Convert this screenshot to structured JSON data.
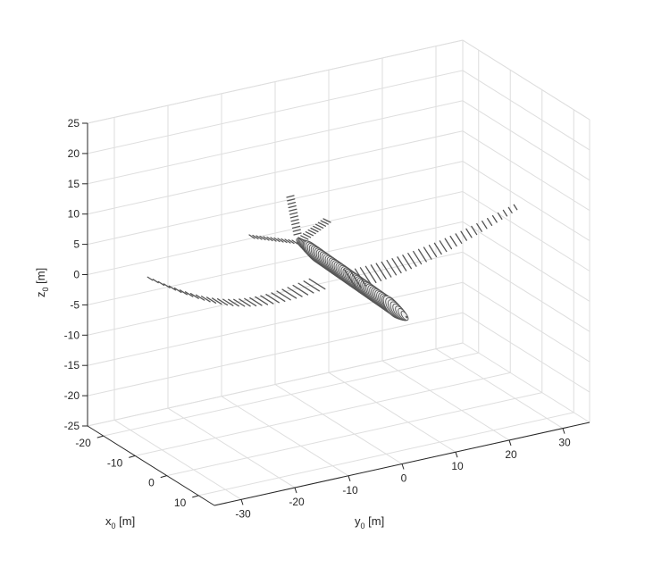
{
  "chart_data": {
    "type": "3d-surface",
    "grid": true,
    "xlabel": {
      "base": "x",
      "sub": "0",
      "unit": " [m]"
    },
    "ylabel": {
      "base": "y",
      "sub": "0",
      "unit": " [m]"
    },
    "zlabel": {
      "base": "z",
      "sub": "0",
      "unit": " [m]"
    },
    "x_ticks": [
      "-20",
      "-10",
      "0",
      "10"
    ],
    "y_ticks": [
      "-30",
      "-20",
      "-10",
      "0",
      "10",
      "20",
      "30"
    ],
    "z_ticks": [
      "25",
      "20",
      "15",
      "10",
      "5",
      "0",
      "-5",
      "-10",
      "-15",
      "-20",
      "-25"
    ],
    "xlim": [
      -25,
      15
    ],
    "ylim": [
      -35,
      35
    ],
    "zlim": [
      -25,
      25
    ],
    "object": "aircraft surface mesh",
    "colors": {
      "surface": "#f0f0f0",
      "mesh": "#555555",
      "axes": "#262626",
      "grid": "#dedede"
    }
  }
}
